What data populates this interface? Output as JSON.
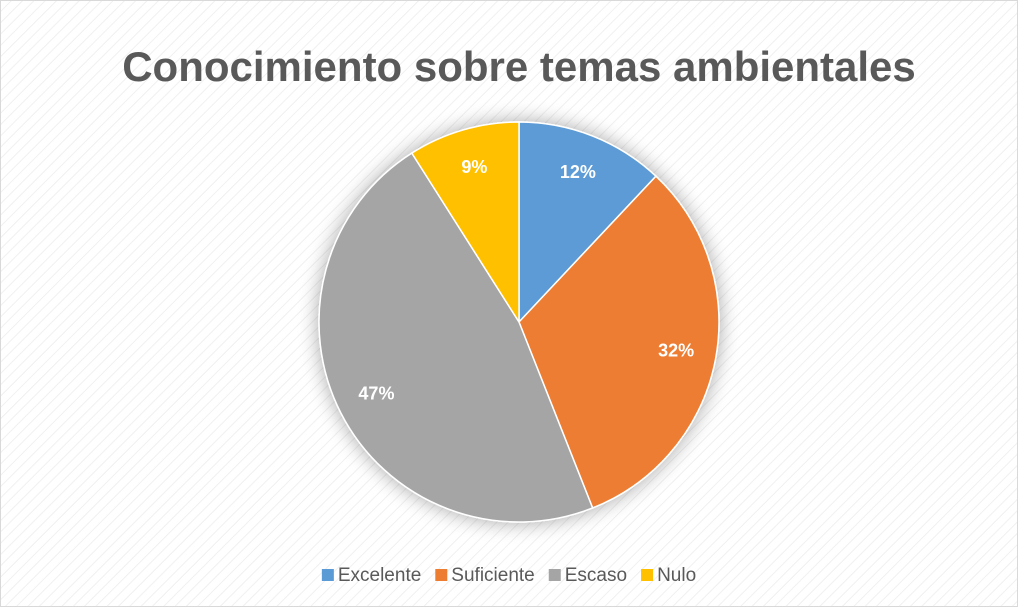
{
  "chart_data": {
    "type": "pie",
    "title": "Conocimiento sobre temas ambientales",
    "categories": [
      "Excelente",
      "Suficiente",
      "Escaso",
      "Nulo"
    ],
    "values": [
      12,
      32,
      47,
      9
    ],
    "value_labels": [
      "12%",
      "32%",
      "47%",
      "9%"
    ],
    "colors": [
      "#5b9bd5",
      "#ed7d31",
      "#a5a5a5",
      "#ffc000"
    ],
    "legend": "bottom"
  }
}
